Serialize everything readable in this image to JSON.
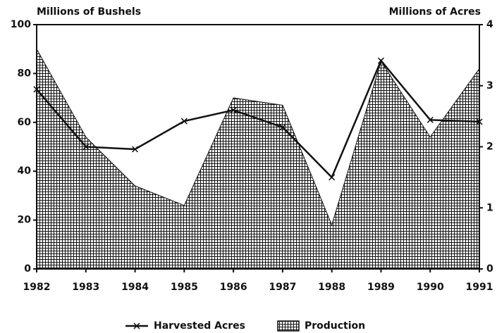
{
  "chart_data": {
    "type": "line-area",
    "ylabel": "Millions of Bushels",
    "y2label": "Millions of Acres",
    "categories": [
      "1982",
      "1983",
      "1984",
      "1985",
      "1986",
      "1987",
      "1988",
      "1989",
      "1990",
      "1991"
    ],
    "series": [
      {
        "name": "Harvested Acres",
        "type": "line",
        "axis": "y2",
        "color": "#111111",
        "values": [
          2.94,
          2.0,
          1.96,
          2.42,
          2.6,
          2.32,
          1.5,
          3.41,
          2.44,
          2.41
        ]
      },
      {
        "name": "Production",
        "type": "area",
        "axis": "y",
        "color": "#111111",
        "values": [
          90,
          54,
          34,
          26,
          70,
          67,
          18,
          85,
          54,
          82
        ]
      }
    ],
    "ylim": [
      0,
      100
    ],
    "yticks": [
      0,
      20,
      40,
      60,
      80,
      100
    ],
    "y2lim": [
      0,
      4
    ],
    "y2ticks": [
      0,
      1,
      2,
      3,
      4
    ],
    "grid": false,
    "legend": "bottom"
  }
}
